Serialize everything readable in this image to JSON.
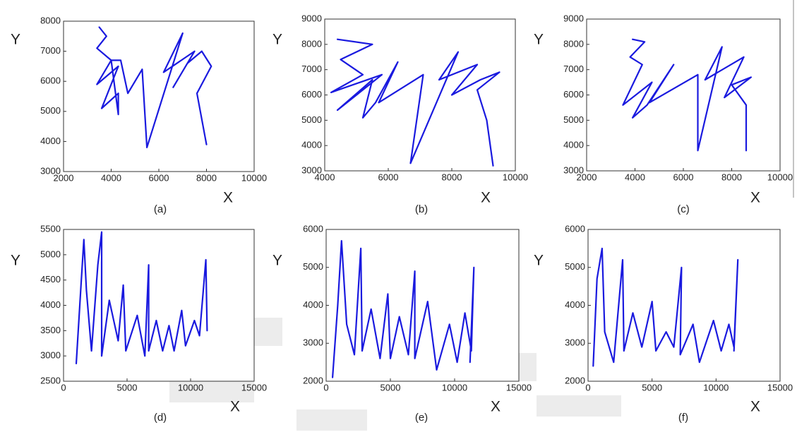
{
  "chart_data": [
    {
      "type": "line",
      "caption": "(a)",
      "xlabel": "X",
      "ylabel": "Y",
      "color": "#1a1adf",
      "xlim": [
        2000,
        10000
      ],
      "ylim": [
        3000,
        8000
      ],
      "xticks": [
        2000,
        4000,
        6000,
        8000,
        10000
      ],
      "yticks": [
        3000,
        4000,
        5000,
        6000,
        7000,
        8000
      ],
      "x": [
        3500,
        3800,
        3400,
        4000,
        3400,
        4300,
        3600,
        4300,
        4300,
        4000,
        4400,
        4700,
        5300,
        5500,
        7000,
        6200,
        7500,
        6600,
        7200,
        7800,
        8200,
        7600,
        8000
      ],
      "values": [
        7800,
        7500,
        7100,
        6700,
        5900,
        6500,
        5100,
        5600,
        4900,
        6700,
        6700,
        5600,
        6400,
        3800,
        7600,
        6300,
        7000,
        5800,
        6600,
        7000,
        6500,
        5600,
        3900
      ]
    },
    {
      "type": "line",
      "caption": "(b)",
      "xlabel": "X",
      "ylabel": "Y",
      "color": "#1a1adf",
      "xlim": [
        4000,
        10000
      ],
      "ylim": [
        3000,
        9000
      ],
      "xticks": [
        4000,
        6000,
        8000,
        10000
      ],
      "yticks": [
        3000,
        4000,
        5000,
        6000,
        7000,
        8000,
        9000
      ],
      "x": [
        4400,
        5500,
        4500,
        5200,
        4200,
        5800,
        4400,
        5500,
        5200,
        5600,
        6300,
        5700,
        7100,
        6700,
        8200,
        7600,
        8800,
        8000,
        8900,
        9500,
        8800,
        9100,
        9300
      ],
      "values": [
        8200,
        8000,
        7400,
        6800,
        6100,
        6800,
        5400,
        6600,
        5100,
        5700,
        7300,
        5700,
        6800,
        3300,
        7700,
        6600,
        7200,
        6000,
        6600,
        6900,
        6200,
        5000,
        3200
      ]
    },
    {
      "type": "line",
      "caption": "(c)",
      "xlabel": "X",
      "ylabel": "Y",
      "color": "#1a1adf",
      "xlim": [
        2000,
        10000
      ],
      "ylim": [
        3000,
        9000
      ],
      "xticks": [
        2000,
        4000,
        6000,
        8000,
        10000
      ],
      "yticks": [
        3000,
        4000,
        5000,
        6000,
        7000,
        8000,
        9000
      ],
      "x": [
        3900,
        4400,
        3800,
        4300,
        3500,
        4700,
        3900,
        4500,
        5600,
        4600,
        6600,
        6600,
        7600,
        6900,
        8500,
        7700,
        8800,
        8000,
        8600,
        8600
      ],
      "values": [
        8200,
        8100,
        7500,
        7200,
        5600,
        6500,
        5100,
        5600,
        7200,
        5700,
        6800,
        3800,
        7900,
        6600,
        7500,
        5900,
        6700,
        6400,
        5600,
        3800
      ]
    },
    {
      "type": "line",
      "caption": "(d)",
      "xlabel": "X",
      "ylabel": "Y",
      "color": "#1a1adf",
      "xlim": [
        0,
        15000
      ],
      "ylim": [
        2500,
        5500
      ],
      "xticks": [
        0,
        5000,
        10000,
        15000
      ],
      "yticks": [
        2500,
        3000,
        3500,
        4000,
        4500,
        5000,
        5500
      ],
      "x": [
        1000,
        1400,
        1600,
        1800,
        2200,
        2700,
        3000,
        3000,
        3600,
        4300,
        4700,
        4900,
        5800,
        6400,
        6700,
        6700,
        7300,
        7800,
        8300,
        8700,
        9300,
        9600,
        10300,
        10700,
        11200,
        11300
      ],
      "values": [
        2850,
        4500,
        5300,
        4300,
        3100,
        4800,
        5450,
        3000,
        4100,
        3300,
        4400,
        3100,
        3800,
        3000,
        4800,
        3100,
        3700,
        3100,
        3600,
        3100,
        3900,
        3200,
        3700,
        3400,
        4900,
        3500
      ]
    },
    {
      "type": "line",
      "caption": "(e)",
      "xlabel": "X",
      "ylabel": "Y",
      "color": "#1a1adf",
      "xlim": [
        0,
        15000
      ],
      "ylim": [
        2000,
        6000
      ],
      "xticks": [
        0,
        5000,
        10000,
        15000
      ],
      "yticks": [
        2000,
        3000,
        4000,
        5000,
        6000
      ],
      "x": [
        500,
        900,
        1200,
        1600,
        2200,
        2700,
        2800,
        3500,
        4200,
        4800,
        5000,
        5700,
        6400,
        6900,
        6900,
        7900,
        8600,
        9600,
        10200,
        10800,
        11300,
        11500,
        11200
      ],
      "values": [
        2100,
        4000,
        5700,
        3500,
        2700,
        5500,
        2800,
        3900,
        2600,
        4300,
        2600,
        3700,
        2700,
        4900,
        2600,
        4100,
        2300,
        3500,
        2500,
        3800,
        2800,
        5000,
        2500
      ]
    },
    {
      "type": "line",
      "caption": "(f)",
      "xlabel": "X",
      "ylabel": "Y",
      "color": "#1a1adf",
      "xlim": [
        0,
        15000
      ],
      "ylim": [
        2000,
        6000
      ],
      "xticks": [
        0,
        5000,
        10000,
        15000
      ],
      "yticks": [
        2000,
        3000,
        4000,
        5000,
        6000
      ],
      "x": [
        400,
        700,
        1100,
        1300,
        2000,
        2700,
        2800,
        3500,
        4200,
        5000,
        5300,
        6100,
        6700,
        7300,
        7200,
        8200,
        8700,
        9800,
        10400,
        11000,
        11400,
        11700,
        11400
      ],
      "values": [
        2400,
        4700,
        5500,
        3300,
        2500,
        5200,
        2800,
        3800,
        2900,
        4100,
        2800,
        3300,
        2900,
        5000,
        2700,
        3500,
        2500,
        3600,
        2800,
        3500,
        2900,
        5200,
        2800
      ]
    }
  ]
}
